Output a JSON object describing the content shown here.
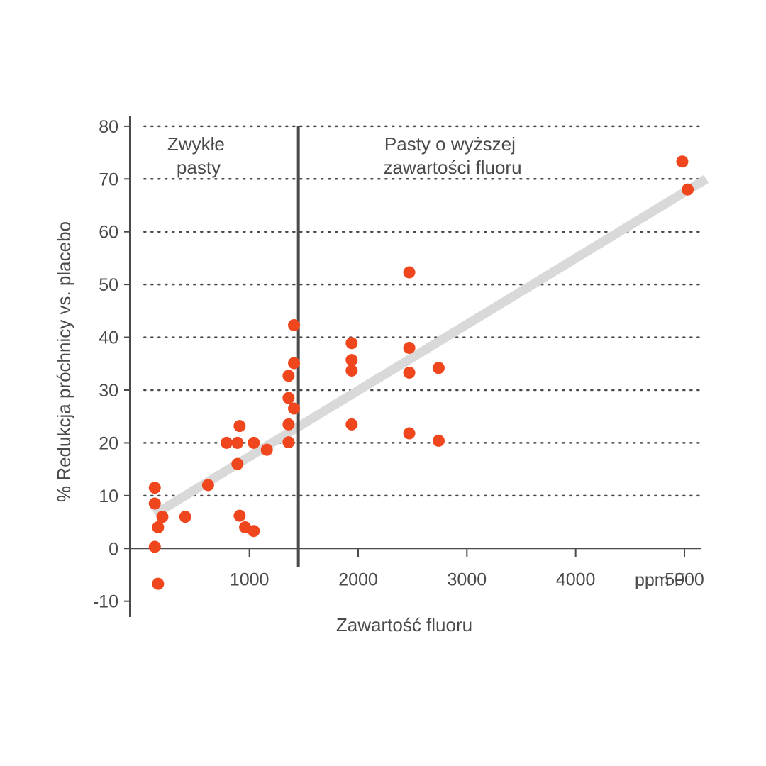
{
  "chart_data": {
    "type": "scatter",
    "title": "",
    "xlabel": "Zawartość fluoru",
    "x_unit": "ppm F⁻",
    "ylabel": "% Redukcja próchnicy vs. placebo",
    "xlim": [
      -100,
      5150
    ],
    "ylim": [
      -13,
      82
    ],
    "x_ticks": [
      1000,
      2000,
      3000,
      4000,
      5000
    ],
    "x_tick_labels": [
      "1000",
      "2000",
      "3000",
      "4000",
      "5000"
    ],
    "y_ticks": [
      -10,
      0,
      10,
      20,
      30,
      40,
      50,
      60,
      70,
      80
    ],
    "y_tick_labels": [
      "-10",
      "0",
      "10",
      "20",
      "30",
      "40",
      "50",
      "60",
      "70",
      "80"
    ],
    "grid": "horizontal dotted",
    "divider_x": 1450,
    "regions": [
      {
        "lines": [
          "Zwykłe",
          "pasty"
        ]
      },
      {
        "lines": [
          "Pasty o wyższej",
          "zawartości fluoru"
        ]
      }
    ],
    "series": [
      {
        "color": "#f0461e",
        "points": [
          [
            130,
            11.5
          ],
          [
            130,
            8.5
          ],
          [
            130,
            0.3
          ],
          [
            160,
            4
          ],
          [
            160,
            -6.7
          ],
          [
            200,
            6
          ],
          [
            410,
            6
          ],
          [
            620,
            12
          ],
          [
            790,
            20
          ],
          [
            890,
            20
          ],
          [
            890,
            16
          ],
          [
            910,
            23.2
          ],
          [
            910,
            6.2
          ],
          [
            960,
            4
          ],
          [
            1040,
            20
          ],
          [
            1040,
            3.3
          ],
          [
            1160,
            18.7
          ],
          [
            1360,
            32.7
          ],
          [
            1360,
            28.5
          ],
          [
            1360,
            23.5
          ],
          [
            1360,
            20.1
          ],
          [
            1410,
            42.3
          ],
          [
            1410,
            35.1
          ],
          [
            1410,
            26.5
          ],
          [
            1940,
            38.9
          ],
          [
            1940,
            35.7
          ],
          [
            1940,
            33.7
          ],
          [
            1940,
            23.5
          ],
          [
            2470,
            52.3
          ],
          [
            2470,
            38
          ],
          [
            2470,
            33.3
          ],
          [
            2470,
            21.8
          ],
          [
            2740,
            34.2
          ],
          [
            2740,
            20.4
          ],
          [
            4980,
            73.3
          ],
          [
            5030,
            68
          ]
        ]
      }
    ],
    "trendline": {
      "color": "#d9d9d9",
      "from": [
        130,
        6.5
      ],
      "to": [
        5200,
        70
      ]
    }
  }
}
